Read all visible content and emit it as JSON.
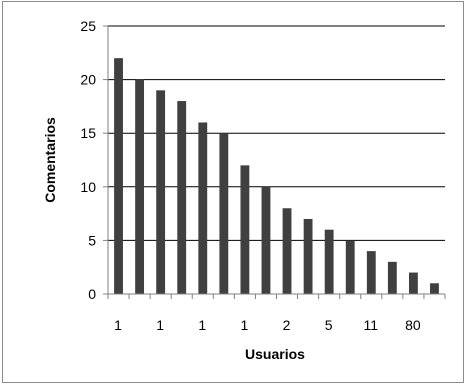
{
  "chart_data": {
    "type": "bar",
    "title": "",
    "xlabel": "Usuarios",
    "ylabel": "Comentarios",
    "ylim": [
      0,
      25
    ],
    "yticks": [
      0,
      5,
      10,
      15,
      20,
      25
    ],
    "grid": true,
    "legend": "none",
    "colors": {
      "bar": "#404040",
      "grid": "#000000",
      "axis": "#808080"
    },
    "categories": [
      "1",
      "",
      "1",
      "",
      "1",
      "",
      "1",
      "",
      "2",
      "",
      "5",
      "",
      "11",
      "",
      "80",
      ""
    ],
    "values": [
      22,
      20,
      19,
      18,
      16,
      15,
      12,
      10,
      8,
      7,
      6,
      5,
      4,
      3,
      2,
      1
    ]
  }
}
